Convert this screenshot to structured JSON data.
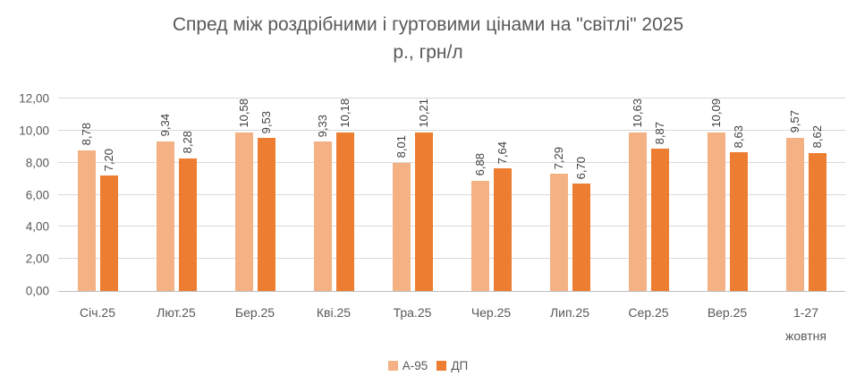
{
  "chart_data": {
    "type": "bar",
    "title": "Спред між роздрібними і гуртовими цінами на \"світлі\" 2025\nр., грн/л",
    "categories": [
      "Січ.25",
      "Лют.25",
      "Бер.25",
      "Кві.25",
      "Тра.25",
      "Чер.25",
      "Лип.25",
      "Сер.25",
      "Вер.25",
      "1-27\nжовтня"
    ],
    "series": [
      {
        "name": "А-95",
        "color": "#f4b183",
        "values": [
          8.78,
          9.34,
          10.58,
          9.33,
          8.01,
          6.88,
          7.29,
          10.63,
          10.09,
          9.57
        ],
        "labels": [
          "8,78",
          "9,34",
          "10,58",
          "9,33",
          "8,01",
          "6,88",
          "7,29",
          "10,63",
          "10,09",
          "9,57"
        ]
      },
      {
        "name": "ДП",
        "color": "#ed7d31",
        "values": [
          7.2,
          8.28,
          9.53,
          10.18,
          10.21,
          7.64,
          6.7,
          8.87,
          8.63,
          8.62
        ],
        "labels": [
          "7,20",
          "8,28",
          "9,53",
          "10,18",
          "10,21",
          "7,64",
          "6,70",
          "8,87",
          "8,63",
          "8,62"
        ]
      }
    ],
    "y_axis": {
      "min": 0,
      "max": 12,
      "step": 2,
      "tick_labels": [
        "0,00",
        "2,00",
        "4,00",
        "6,00",
        "8,00",
        "10,00",
        "12,00"
      ]
    },
    "grid": true,
    "legend_position": "bottom",
    "colors": {
      "gridline": "#d9d9d9",
      "axis_line": "#bfbfbf",
      "text": "#595959",
      "data_label": "#3f3f3f"
    }
  }
}
